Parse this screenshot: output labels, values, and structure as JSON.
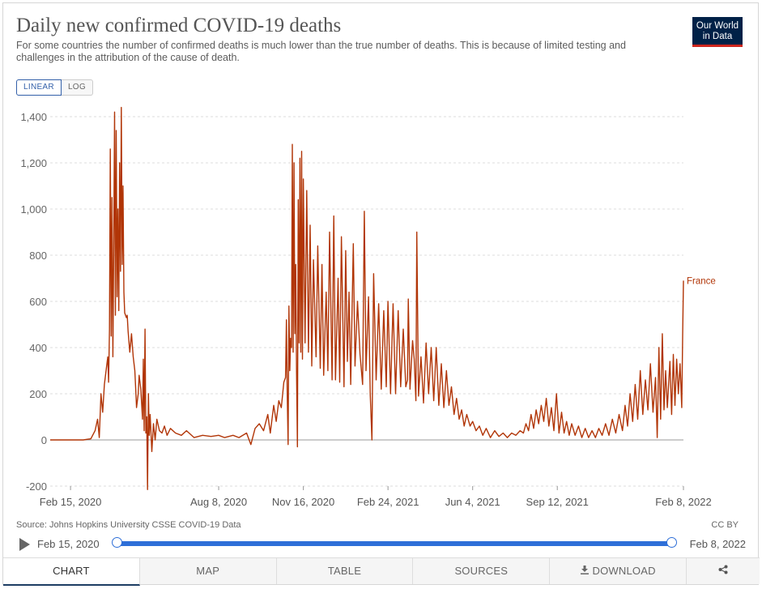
{
  "header": {
    "title": "Daily new confirmed COVID-19 deaths",
    "subtitle": "For some countries the number of confirmed deaths is much lower than the true number of deaths. This is because of limited testing and challenges in the attribution of the cause of death.",
    "logo_line1": "Our World",
    "logo_line2": "in Data"
  },
  "controls": {
    "linear_label": "LINEAR",
    "log_label": "LOG",
    "active_scale": "linear"
  },
  "footer": {
    "source": "Source: Johns Hopkins University CSSE COVID-19 Data",
    "license": "CC BY"
  },
  "timeline": {
    "start": "Feb 15, 2020",
    "end": "Feb 8, 2022"
  },
  "tabs": {
    "chart": "CHART",
    "map": "MAP",
    "table": "TABLE",
    "sources": "SOURCES",
    "download": "DOWNLOAD",
    "share_icon": "share-icon",
    "download_icon": "download-icon"
  },
  "colors": {
    "series": "#b13507",
    "accent": "#2e6fd8",
    "logo_bg": "#002147",
    "logo_bar": "#ce261e"
  },
  "chart_data": {
    "type": "line",
    "title": "Daily new confirmed COVID-19 deaths",
    "ylim": [
      -200,
      1400
    ],
    "yticks": [
      -200,
      0,
      200,
      400,
      600,
      800,
      1000,
      1200,
      1400
    ],
    "ytick_labels": [
      "-200",
      "0",
      "200",
      "400",
      "600",
      "800",
      "1,000",
      "1,200",
      "1,400"
    ],
    "xticks": [
      "2020-02-15",
      "2020-08-08",
      "2020-11-16",
      "2021-02-24",
      "2021-06-04",
      "2021-09-12",
      "2022-02-08"
    ],
    "xtick_labels": [
      "Feb 15, 2020",
      "Aug 8, 2020",
      "Nov 16, 2020",
      "Feb 24, 2021",
      "Jun 4, 2021",
      "Sep 12, 2021",
      "Feb 8, 2022"
    ],
    "xlim": [
      "2020-01-22",
      "2022-02-08"
    ],
    "grid": true,
    "series": [
      {
        "name": "France",
        "points": [
          [
            "2020-01-22",
            0
          ],
          [
            "2020-02-15",
            0
          ],
          [
            "2020-03-01",
            0
          ],
          [
            "2020-03-10",
            5
          ],
          [
            "2020-03-15",
            40
          ],
          [
            "2020-03-18",
            90
          ],
          [
            "2020-03-20",
            10
          ],
          [
            "2020-03-22",
            200
          ],
          [
            "2020-03-24",
            120
          ],
          [
            "2020-03-26",
            240
          ],
          [
            "2020-03-28",
            300
          ],
          [
            "2020-03-30",
            360
          ],
          [
            "2020-03-31",
            250
          ],
          [
            "2020-04-01",
            480
          ],
          [
            "2020-04-02",
            1260
          ],
          [
            "2020-04-03",
            450
          ],
          [
            "2020-04-04",
            1050
          ],
          [
            "2020-04-05",
            360
          ],
          [
            "2020-04-06",
            820
          ],
          [
            "2020-04-07",
            1420
          ],
          [
            "2020-04-08",
            540
          ],
          [
            "2020-04-09",
            1340
          ],
          [
            "2020-04-10",
            620
          ],
          [
            "2020-04-11",
            1000
          ],
          [
            "2020-04-12",
            560
          ],
          [
            "2020-04-13",
            1200
          ],
          [
            "2020-04-14",
            730
          ],
          [
            "2020-04-15",
            1440
          ],
          [
            "2020-04-16",
            760
          ],
          [
            "2020-04-17",
            1100
          ],
          [
            "2020-04-18",
            640
          ],
          [
            "2020-04-19",
            550
          ],
          [
            "2020-04-21",
            530
          ],
          [
            "2020-04-22",
            540
          ],
          [
            "2020-04-23",
            470
          ],
          [
            "2020-04-25",
            380
          ],
          [
            "2020-04-27",
            460
          ],
          [
            "2020-04-29",
            360
          ],
          [
            "2020-05-01",
            300
          ],
          [
            "2020-05-02",
            220
          ],
          [
            "2020-05-03",
            140
          ],
          [
            "2020-05-05",
            200
          ],
          [
            "2020-05-06",
            280
          ],
          [
            "2020-05-08",
            220
          ],
          [
            "2020-05-10",
            90
          ],
          [
            "2020-05-11",
            350
          ],
          [
            "2020-05-12",
            40
          ],
          [
            "2020-05-13",
            480
          ],
          [
            "2020-05-14",
            30
          ],
          [
            "2020-05-15",
            100
          ],
          [
            "2020-05-16",
            -215
          ],
          [
            "2020-05-17",
            200
          ],
          [
            "2020-05-18",
            20
          ],
          [
            "2020-05-19",
            110
          ],
          [
            "2020-05-21",
            -50
          ],
          [
            "2020-05-23",
            70
          ],
          [
            "2020-05-25",
            0
          ],
          [
            "2020-05-27",
            90
          ],
          [
            "2020-05-30",
            40
          ],
          [
            "2020-06-02",
            30
          ],
          [
            "2020-06-05",
            60
          ],
          [
            "2020-06-08",
            20
          ],
          [
            "2020-06-12",
            50
          ],
          [
            "2020-06-18",
            30
          ],
          [
            "2020-06-25",
            20
          ],
          [
            "2020-07-01",
            40
          ],
          [
            "2020-07-10",
            10
          ],
          [
            "2020-07-20",
            20
          ],
          [
            "2020-07-30",
            15
          ],
          [
            "2020-08-08",
            20
          ],
          [
            "2020-08-15",
            10
          ],
          [
            "2020-08-25",
            20
          ],
          [
            "2020-09-01",
            10
          ],
          [
            "2020-09-10",
            30
          ],
          [
            "2020-09-15",
            -20
          ],
          [
            "2020-09-20",
            50
          ],
          [
            "2020-09-25",
            70
          ],
          [
            "2020-09-30",
            40
          ],
          [
            "2020-10-05",
            110
          ],
          [
            "2020-10-08",
            30
          ],
          [
            "2020-10-12",
            150
          ],
          [
            "2020-10-15",
            80
          ],
          [
            "2020-10-18",
            170
          ],
          [
            "2020-10-21",
            140
          ],
          [
            "2020-10-24",
            250
          ],
          [
            "2020-10-26",
            270
          ],
          [
            "2020-10-27",
            520
          ],
          [
            "2020-10-28",
            200
          ],
          [
            "2020-10-29",
            -20
          ],
          [
            "2020-10-30",
            580
          ],
          [
            "2020-10-31",
            300
          ],
          [
            "2020-11-01",
            440
          ],
          [
            "2020-11-02",
            400
          ],
          [
            "2020-11-03",
            1280
          ],
          [
            "2020-11-04",
            380
          ],
          [
            "2020-11-05",
            1200
          ],
          [
            "2020-11-06",
            460
          ],
          [
            "2020-11-07",
            760
          ],
          [
            "2020-11-08",
            300
          ],
          [
            "2020-11-09",
            -30
          ],
          [
            "2020-11-10",
            1040
          ],
          [
            "2020-11-11",
            420
          ],
          [
            "2020-11-12",
            1220
          ],
          [
            "2020-11-13",
            380
          ],
          [
            "2020-11-14",
            1250
          ],
          [
            "2020-11-15",
            350
          ],
          [
            "2020-11-16",
            1130
          ],
          [
            "2020-11-18",
            420
          ],
          [
            "2020-11-20",
            1080
          ],
          [
            "2020-11-22",
            380
          ],
          [
            "2020-11-24",
            930
          ],
          [
            "2020-11-26",
            320
          ],
          [
            "2020-11-28",
            780
          ],
          [
            "2020-12-01",
            360
          ],
          [
            "2020-12-03",
            840
          ],
          [
            "2020-12-06",
            310
          ],
          [
            "2020-12-08",
            760
          ],
          [
            "2020-12-10",
            280
          ],
          [
            "2020-12-13",
            640
          ],
          [
            "2020-12-15",
            300
          ],
          [
            "2020-12-17",
            900
          ],
          [
            "2020-12-20",
            260
          ],
          [
            "2020-12-22",
            970
          ],
          [
            "2020-12-24",
            260
          ],
          [
            "2020-12-27",
            700
          ],
          [
            "2020-12-29",
            250
          ],
          [
            "2020-12-31",
            880
          ],
          [
            "2021-01-03",
            230
          ],
          [
            "2021-01-05",
            820
          ],
          [
            "2021-01-07",
            340
          ],
          [
            "2021-01-09",
            640
          ],
          [
            "2021-01-11",
            240
          ],
          [
            "2021-01-14",
            850
          ],
          [
            "2021-01-16",
            320
          ],
          [
            "2021-01-19",
            600
          ],
          [
            "2021-01-22",
            370
          ],
          [
            "2021-01-25",
            240
          ],
          [
            "2021-01-27",
            990
          ],
          [
            "2021-01-29",
            300
          ],
          [
            "2021-02-01",
            620
          ],
          [
            "2021-02-03",
            200
          ],
          [
            "2021-02-05",
            0
          ],
          [
            "2021-02-07",
            720
          ],
          [
            "2021-02-10",
            260
          ],
          [
            "2021-02-13",
            590
          ],
          [
            "2021-02-16",
            220
          ],
          [
            "2021-02-19",
            560
          ],
          [
            "2021-02-22",
            230
          ],
          [
            "2021-02-24",
            600
          ],
          [
            "2021-02-27",
            200
          ],
          [
            "2021-03-02",
            590
          ],
          [
            "2021-03-05",
            200
          ],
          [
            "2021-03-08",
            560
          ],
          [
            "2021-03-11",
            230
          ],
          [
            "2021-03-14",
            480
          ],
          [
            "2021-03-17",
            230
          ],
          [
            "2021-03-19",
            260
          ],
          [
            "2021-03-20",
            610
          ],
          [
            "2021-03-22",
            220
          ],
          [
            "2021-03-25",
            430
          ],
          [
            "2021-03-27",
            350
          ],
          [
            "2021-03-29",
            170
          ],
          [
            "2021-03-30",
            900
          ],
          [
            "2021-04-01",
            190
          ],
          [
            "2021-04-04",
            360
          ],
          [
            "2021-04-07",
            160
          ],
          [
            "2021-04-10",
            420
          ],
          [
            "2021-04-13",
            200
          ],
          [
            "2021-04-16",
            400
          ],
          [
            "2021-04-19",
            170
          ],
          [
            "2021-04-22",
            400
          ],
          [
            "2021-04-25",
            150
          ],
          [
            "2021-04-28",
            330
          ],
          [
            "2021-05-01",
            140
          ],
          [
            "2021-05-04",
            300
          ],
          [
            "2021-05-07",
            150
          ],
          [
            "2021-05-10",
            230
          ],
          [
            "2021-05-13",
            110
          ],
          [
            "2021-05-16",
            180
          ],
          [
            "2021-05-19",
            90
          ],
          [
            "2021-05-22",
            130
          ],
          [
            "2021-05-25",
            60
          ],
          [
            "2021-05-28",
            110
          ],
          [
            "2021-06-01",
            60
          ],
          [
            "2021-06-04",
            80
          ],
          [
            "2021-06-08",
            40
          ],
          [
            "2021-06-12",
            60
          ],
          [
            "2021-06-16",
            20
          ],
          [
            "2021-06-20",
            50
          ],
          [
            "2021-06-25",
            10
          ],
          [
            "2021-06-30",
            40
          ],
          [
            "2021-07-05",
            15
          ],
          [
            "2021-07-10",
            30
          ],
          [
            "2021-07-15",
            10
          ],
          [
            "2021-07-20",
            30
          ],
          [
            "2021-07-25",
            20
          ],
          [
            "2021-07-30",
            40
          ],
          [
            "2021-08-03",
            30
          ],
          [
            "2021-08-06",
            70
          ],
          [
            "2021-08-09",
            40
          ],
          [
            "2021-08-12",
            110
          ],
          [
            "2021-08-15",
            50
          ],
          [
            "2021-08-18",
            130
          ],
          [
            "2021-08-21",
            70
          ],
          [
            "2021-08-24",
            150
          ],
          [
            "2021-08-27",
            80
          ],
          [
            "2021-08-30",
            180
          ],
          [
            "2021-09-02",
            60
          ],
          [
            "2021-09-05",
            140
          ],
          [
            "2021-09-08",
            40
          ],
          [
            "2021-09-11",
            200
          ],
          [
            "2021-09-14",
            30
          ],
          [
            "2021-09-17",
            120
          ],
          [
            "2021-09-20",
            30
          ],
          [
            "2021-09-23",
            80
          ],
          [
            "2021-09-26",
            20
          ],
          [
            "2021-09-29",
            70
          ],
          [
            "2021-10-03",
            20
          ],
          [
            "2021-10-07",
            60
          ],
          [
            "2021-10-11",
            10
          ],
          [
            "2021-10-15",
            50
          ],
          [
            "2021-10-19",
            10
          ],
          [
            "2021-10-23",
            40
          ],
          [
            "2021-10-27",
            10
          ],
          [
            "2021-10-31",
            50
          ],
          [
            "2021-11-04",
            20
          ],
          [
            "2021-11-08",
            70
          ],
          [
            "2021-11-12",
            20
          ],
          [
            "2021-11-16",
            90
          ],
          [
            "2021-11-20",
            30
          ],
          [
            "2021-11-24",
            110
          ],
          [
            "2021-11-28",
            40
          ],
          [
            "2021-12-01",
            150
          ],
          [
            "2021-12-04",
            60
          ],
          [
            "2021-12-07",
            200
          ],
          [
            "2021-12-10",
            80
          ],
          [
            "2021-12-13",
            240
          ],
          [
            "2021-12-16",
            90
          ],
          [
            "2021-12-19",
            300
          ],
          [
            "2021-12-22",
            110
          ],
          [
            "2021-12-25",
            260
          ],
          [
            "2021-12-28",
            130
          ],
          [
            "2021-12-31",
            330
          ],
          [
            "2022-01-03",
            120
          ],
          [
            "2022-01-06",
            270
          ],
          [
            "2022-01-08",
            10
          ],
          [
            "2022-01-10",
            400
          ],
          [
            "2022-01-12",
            90
          ],
          [
            "2022-01-14",
            460
          ],
          [
            "2022-01-16",
            130
          ],
          [
            "2022-01-18",
            300
          ],
          [
            "2022-01-20",
            140
          ],
          [
            "2022-01-23",
            340
          ],
          [
            "2022-01-25",
            110
          ],
          [
            "2022-01-27",
            370
          ],
          [
            "2022-01-29",
            150
          ],
          [
            "2022-01-31",
            350
          ],
          [
            "2022-02-02",
            200
          ],
          [
            "2022-02-04",
            330
          ],
          [
            "2022-02-06",
            140
          ],
          [
            "2022-02-07",
            450
          ],
          [
            "2022-02-08",
            690
          ]
        ]
      }
    ]
  }
}
